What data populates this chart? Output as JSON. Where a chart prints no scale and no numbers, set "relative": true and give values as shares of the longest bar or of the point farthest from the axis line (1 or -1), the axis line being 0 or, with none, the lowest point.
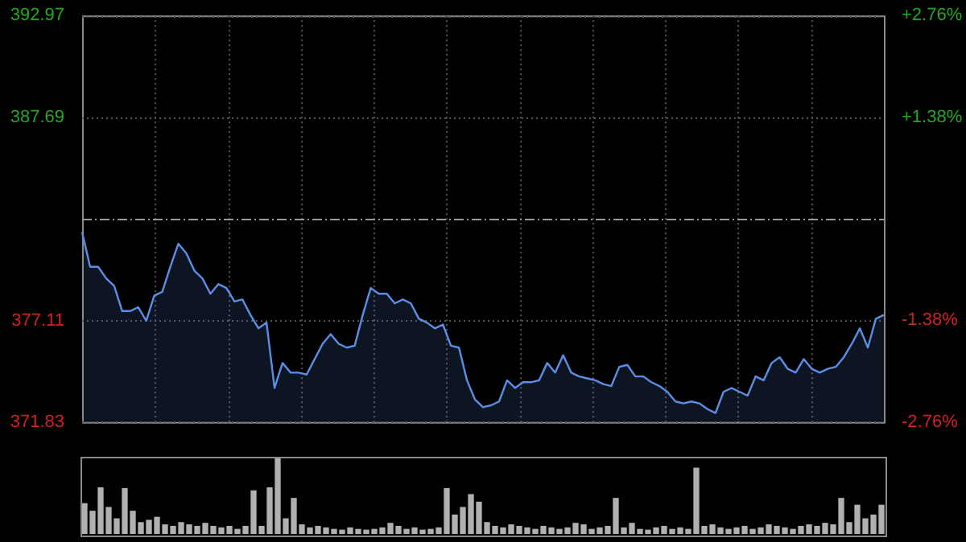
{
  "chart_data": [
    {
      "type": "area",
      "categories": [
        null,
        null,
        null,
        null,
        null,
        null,
        null,
        null,
        null,
        null,
        null,
        null,
        null,
        null,
        null,
        null,
        null,
        null,
        null,
        null,
        null,
        null,
        null,
        null,
        null,
        null,
        null,
        null,
        null,
        null,
        null,
        null,
        null,
        null,
        null,
        null,
        null,
        null,
        null,
        null,
        null,
        null,
        null,
        null,
        null,
        null,
        null,
        null,
        null,
        null,
        null,
        null,
        null,
        null,
        null,
        null,
        null,
        null,
        null,
        null,
        null,
        null,
        null,
        null,
        null,
        null,
        null,
        null,
        null,
        null,
        null,
        null,
        null,
        null,
        null,
        null,
        null,
        null,
        null,
        null,
        null,
        null,
        null,
        null,
        null,
        null,
        null,
        null,
        null,
        null,
        null,
        null,
        null,
        null,
        null,
        null,
        null,
        null,
        null,
        null,
        null
      ],
      "series": [
        {
          "color": "#5b8ee6",
          "values": [
            381.7,
            379.9,
            379.9,
            379.3,
            378.9,
            377.6,
            377.6,
            377.8,
            377.1,
            378.4,
            378.6,
            379.9,
            381.1,
            380.6,
            379.7,
            379.3,
            378.5,
            379.0,
            378.8,
            378.1,
            378.2,
            377.4,
            376.7,
            377.0,
            373.6,
            374.9,
            374.4,
            374.4,
            374.3,
            375.1,
            375.9,
            376.4,
            375.9,
            375.7,
            375.8,
            377.4,
            378.8,
            378.5,
            378.5,
            378.0,
            378.2,
            378.0,
            377.2,
            377.0,
            376.7,
            376.9,
            375.8,
            375.7,
            374.0,
            373.0,
            372.6,
            372.7,
            372.9,
            374.0,
            373.6,
            373.9,
            373.9,
            374.0,
            374.9,
            374.4,
            375.3,
            374.4,
            374.2,
            374.1,
            374.0,
            373.8,
            373.7,
            374.7,
            374.8,
            374.2,
            374.2,
            373.9,
            373.7,
            373.4,
            372.9,
            372.8,
            372.9,
            372.8,
            372.5,
            372.3,
            373.4,
            373.6,
            373.4,
            373.2,
            374.2,
            374.0,
            374.9,
            375.2,
            374.6,
            374.4,
            375.1,
            374.6,
            374.4,
            374.6,
            374.7,
            375.2,
            375.9,
            376.7,
            375.7,
            377.2,
            377.4
          ]
        }
      ],
      "ylim": [
        371.83,
        392.97
      ],
      "yticks": [
        371.83,
        377.11,
        387.69,
        392.97
      ],
      "y2lim": [
        -2.76,
        2.76
      ],
      "y2ticks": [
        {
          "value": -2.76,
          "label": "-2.76%"
        },
        {
          "value": -1.38,
          "label": "-1.38%"
        },
        {
          "value": 1.38,
          "label": "+1.38%"
        },
        {
          "value": 2.76,
          "label": "+2.76%"
        }
      ],
      "ref_lines": [
        {
          "axis": "y",
          "value": 382.4,
          "line_style": "dashed"
        }
      ],
      "grid": true,
      "marker": "none",
      "line_style": "solid",
      "legend": false
    },
    {
      "type": "bar",
      "relative": true,
      "categories": [
        null,
        null,
        null,
        null,
        null,
        null,
        null,
        null,
        null,
        null,
        null,
        null,
        null,
        null,
        null,
        null,
        null,
        null,
        null,
        null,
        null,
        null,
        null,
        null,
        null,
        null,
        null,
        null,
        null,
        null,
        null,
        null,
        null,
        null,
        null,
        null,
        null,
        null,
        null,
        null,
        null,
        null,
        null,
        null,
        null,
        null,
        null,
        null,
        null,
        null,
        null,
        null,
        null,
        null,
        null,
        null,
        null,
        null,
        null,
        null,
        null,
        null,
        null,
        null,
        null,
        null,
        null,
        null,
        null,
        null,
        null,
        null,
        null,
        null,
        null,
        null,
        null,
        null,
        null,
        null,
        null,
        null,
        null,
        null,
        null,
        null,
        null,
        null,
        null,
        null,
        null,
        null,
        null,
        null,
        null,
        null,
        null,
        null,
        null,
        null
      ],
      "color": "#b0b0b0",
      "values": [
        0.4,
        0.3,
        0.61,
        0.35,
        0.2,
        0.6,
        0.3,
        0.15,
        0.18,
        0.22,
        0.12,
        0.1,
        0.15,
        0.12,
        0.1,
        0.14,
        0.1,
        0.08,
        0.1,
        0.06,
        0.1,
        0.57,
        0.1,
        0.61,
        1,
        0.2,
        0.47,
        0.12,
        0.08,
        0.1,
        0.08,
        0.06,
        0.05,
        0.08,
        0.06,
        0.05,
        0.06,
        0.08,
        0.14,
        0.1,
        0.06,
        0.08,
        0.05,
        0.06,
        0.08,
        0.6,
        0.25,
        0.35,
        0.52,
        0.42,
        0.15,
        0.1,
        0.08,
        0.12,
        0.1,
        0.08,
        0.06,
        0.1,
        0.08,
        0.06,
        0.08,
        0.14,
        0.12,
        0.06,
        0.08,
        0.1,
        0.47,
        0.08,
        0.14,
        0.06,
        0.05,
        0.08,
        0.1,
        0.06,
        0.08,
        0.06,
        0.87,
        0.1,
        0.12,
        0.08,
        0.06,
        0.08,
        0.1,
        0.06,
        0.08,
        0.12,
        0.1,
        0.08,
        0.06,
        0.1,
        0.12,
        0.1,
        0.14,
        0.12,
        0.47,
        0.15,
        0.38,
        0.2,
        0.25,
        0.38
      ],
      "legend": false
    }
  ]
}
